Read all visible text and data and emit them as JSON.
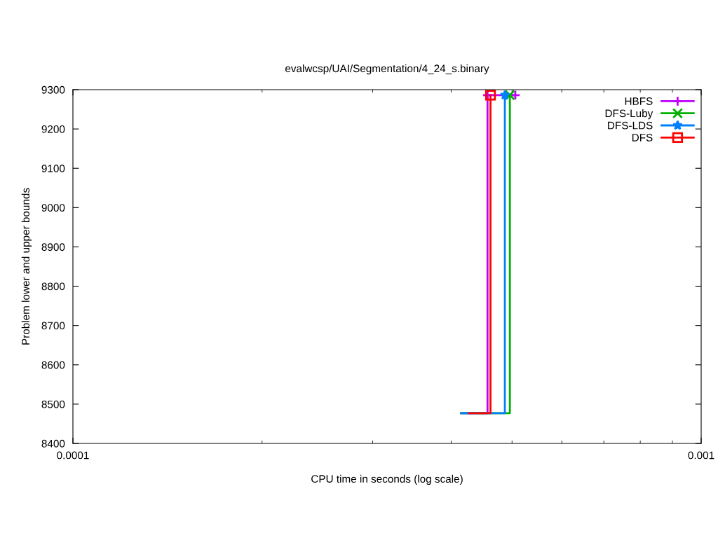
{
  "chart_data": {
    "type": "step",
    "title": "evalwcsp/UAI/Segmentation/4_24_s.binary",
    "xlabel": "CPU time in seconds (log scale)",
    "ylabel": "Problem lower and upper bounds",
    "log": "x",
    "xlim": [
      0.0001,
      0.001
    ],
    "xticks": [
      {
        "value": 0.0001,
        "label": "0.0001"
      },
      {
        "value": 0.001,
        "label": "0.001"
      }
    ],
    "ylim": [
      8400,
      9300
    ],
    "yticks": [
      8400,
      8500,
      8600,
      8700,
      8800,
      8900,
      9000,
      9100,
      9200,
      9300
    ],
    "grid": false,
    "legend": "top right",
    "line_style": "solid",
    "series": [
      {
        "name": "HBFS",
        "color": "#c000ff",
        "marker": "cross",
        "x": [
          0.000415,
          0.000457,
          0.000506
        ],
        "values": [
          8477,
          9286,
          9286
        ]
      },
      {
        "name": "DFS-Luby",
        "color": "#00b000",
        "marker": "x",
        "x": [
          0.000415,
          0.000496
        ],
        "values": [
          8477,
          9286
        ]
      },
      {
        "name": "DFS-LDS",
        "color": "#0080ff",
        "marker": "star",
        "x": [
          0.000415,
          0.000487
        ],
        "values": [
          8477,
          9286
        ]
      },
      {
        "name": "DFS",
        "color": "#ff0000",
        "marker": "square",
        "x": [
          0.000427,
          0.000462
        ],
        "values": [
          8477,
          9286
        ]
      }
    ]
  }
}
